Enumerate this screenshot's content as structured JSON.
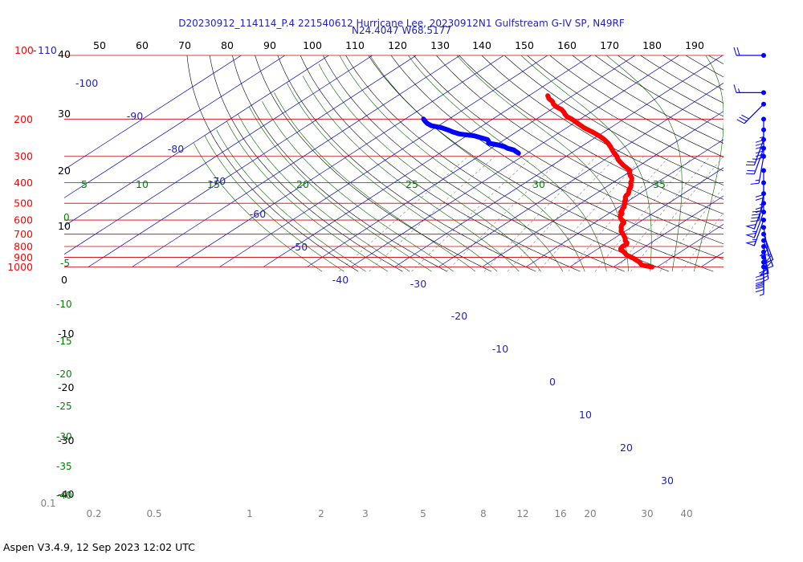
{
  "title": "D20230912_114114_P.4 221540612 Hurricane Lee, 20230912N1 Gulfstream G-IV SP, N49RF",
  "subtitle": "N24.4047 W68.5177",
  "footer": "Aspen V3.4.9, 12 Sep 2023  12:02 UTC",
  "colors": {
    "temperature": "#ff0000",
    "dewpoint": "#0000ff",
    "isobar": "#cc0000",
    "isotherm": "#0000cc",
    "dry_adiabat": "#000000",
    "moist_adiabat": "#006400",
    "mixing_ratio": "#808080",
    "label_blue": "#1f1fbf",
    "label_green": "#008000",
    "label_gray": "#808080",
    "label_red": "#ff0000"
  },
  "labels": {
    "top_temp_top": "100",
    "top_temp_sep": "-",
    "top_temp_tail": "110",
    "top_theta": [
      "40",
      "50",
      "60",
      "70",
      "80",
      "90",
      "100",
      "110",
      "120",
      "130",
      "140",
      "150",
      "160",
      "170",
      "180",
      "190"
    ],
    "left_theta_black": [
      "30",
      "20",
      "10",
      "0",
      "-10",
      "-20",
      "-30",
      "-40"
    ],
    "left_green_moist": [
      "0",
      "-5",
      "-10",
      "-15",
      "-20",
      "-25",
      "-30",
      "-35",
      "-40"
    ],
    "moist_top": [
      "5",
      "10",
      "15",
      "20",
      "25",
      "30",
      "35"
    ],
    "mix_bottom": [
      "0.1",
      "0.2",
      "0.5",
      "1",
      "2",
      "3",
      "5",
      "8",
      "12",
      "16",
      "20",
      "30",
      "40"
    ],
    "isotherm_labels": [
      "-100",
      "-90",
      "-80",
      "-70",
      "-60",
      "-50",
      "-40",
      "-30",
      "-20",
      "-10",
      "0",
      "10",
      "20",
      "30"
    ]
  },
  "chart_data": {
    "type": "skew-t",
    "title": "D20230912_114114_P.4 221540612 Hurricane Lee, 20230912N1 Gulfstream G-IV SP, N49RF",
    "subtitle": "N24.4047 W68.5177",
    "ylabel": "",
    "pressure_levels": [
      100,
      200,
      300,
      400,
      500,
      600,
      700,
      800,
      900,
      1000
    ],
    "pressure_labels": [
      "100",
      "200",
      "300",
      "400",
      "500",
      "600",
      "700",
      "800",
      "900",
      "1000"
    ],
    "series": [
      {
        "points": [
          [
            1000,
            28.8
          ],
          [
            990,
            27.2
          ],
          [
            980,
            25.9
          ],
          [
            970,
            25.3
          ],
          [
            960,
            24.8
          ],
          [
            950,
            24.3
          ],
          [
            940,
            23.6
          ],
          [
            930,
            22.9
          ],
          [
            920,
            22.2
          ],
          [
            910,
            21.5
          ],
          [
            900,
            20.6
          ],
          [
            890,
            19.8
          ],
          [
            880,
            18.9
          ],
          [
            870,
            18.3
          ],
          [
            860,
            17.7
          ],
          [
            850,
            17.1
          ],
          [
            840,
            16.4
          ],
          [
            830,
            15.6
          ],
          [
            820,
            15.2
          ],
          [
            810,
            15.0
          ],
          [
            800,
            14.8
          ],
          [
            790,
            14.9
          ],
          [
            780,
            14.9
          ],
          [
            770,
            14.6
          ],
          [
            760,
            13.9
          ],
          [
            750,
            13.3
          ],
          [
            740,
            12.9
          ],
          [
            730,
            12.4
          ],
          [
            720,
            11.8
          ],
          [
            710,
            11.2
          ],
          [
            700,
            10.6
          ],
          [
            690,
            9.9
          ],
          [
            680,
            9.2
          ],
          [
            670,
            8.7
          ],
          [
            660,
            8.3
          ],
          [
            650,
            7.7
          ],
          [
            640,
            7.3
          ],
          [
            630,
            6.9
          ],
          [
            620,
            6.8
          ],
          [
            610,
            6.3
          ],
          [
            600,
            5.3
          ],
          [
            590,
            4.5
          ],
          [
            580,
            3.8
          ],
          [
            570,
            3.3
          ],
          [
            560,
            3.1
          ],
          [
            550,
            2.2
          ],
          [
            540,
            1.9
          ],
          [
            530,
            1.4
          ],
          [
            520,
            1.2
          ],
          [
            510,
            0.5
          ],
          [
            500,
            0.1
          ],
          [
            490,
            -0.7
          ],
          [
            480,
            -1.1
          ],
          [
            470,
            -1.9
          ],
          [
            460,
            -2.4
          ],
          [
            450,
            -2.6
          ],
          [
            440,
            -3.2
          ],
          [
            430,
            -3.9
          ],
          [
            420,
            -4.3
          ],
          [
            410,
            -5.0
          ],
          [
            400,
            -5.9
          ],
          [
            390,
            -6.5
          ],
          [
            380,
            -7.3
          ],
          [
            370,
            -8.5
          ],
          [
            360,
            -9.6
          ],
          [
            350,
            -10.4
          ],
          [
            340,
            -12.1
          ],
          [
            330,
            -13.9
          ],
          [
            320,
            -15.5
          ],
          [
            310,
            -17.1
          ],
          [
            300,
            -18.4
          ],
          [
            290,
            -20.1
          ],
          [
            280,
            -21.7
          ],
          [
            270,
            -23.3
          ],
          [
            260,
            -25.1
          ],
          [
            250,
            -27.2
          ],
          [
            240,
            -29.7
          ],
          [
            230,
            -32.7
          ],
          [
            220,
            -36.0
          ],
          [
            210,
            -38.9
          ],
          [
            200,
            -41.9
          ],
          [
            195,
            -43.8
          ],
          [
            190,
            -45.1
          ],
          [
            185,
            -46.3
          ],
          [
            180,
            -47.7
          ],
          [
            175,
            -49.8
          ],
          [
            170,
            -51.4
          ],
          [
            165,
            -52.6
          ],
          [
            160,
            -54.4
          ],
          [
            155,
            -55.7
          ]
        ]
      },
      {
        "points": [
          [
            290,
            -42.0
          ],
          [
            285,
            -43.1
          ],
          [
            280,
            -44.2
          ],
          [
            275,
            -46.2
          ],
          [
            270,
            -47.5
          ],
          [
            265,
            -49.6
          ],
          [
            260,
            -52.4
          ],
          [
            255,
            -53.0
          ],
          [
            250,
            -53.9
          ],
          [
            245,
            -56.1
          ],
          [
            240,
            -58.2
          ],
          [
            235,
            -62.4
          ],
          [
            230,
            -64.6
          ],
          [
            225,
            -66.4
          ],
          [
            220,
            -68.5
          ],
          [
            215,
            -71.6
          ],
          [
            210,
            -73.3
          ],
          [
            205,
            -74.6
          ],
          [
            200,
            -75.8
          ]
        ]
      }
    ],
    "wind_barbs": {
      "pressures": [
        100,
        150,
        170,
        200,
        225,
        250,
        275,
        300,
        350,
        400,
        450,
        500,
        550,
        600,
        650,
        700,
        750,
        800,
        850,
        900,
        950,
        1000
      ],
      "speeds_kt": [
        20,
        15,
        30,
        35,
        35,
        25,
        20,
        15,
        20,
        25,
        40,
        50,
        55,
        55,
        50,
        55,
        55,
        50,
        45,
        40,
        30,
        5
      ],
      "directions_deg": [
        270,
        270,
        225,
        180,
        180,
        200,
        200,
        190,
        180,
        180,
        190,
        200,
        200,
        200,
        170,
        160,
        160,
        170,
        170,
        180,
        180,
        180
      ]
    }
  }
}
